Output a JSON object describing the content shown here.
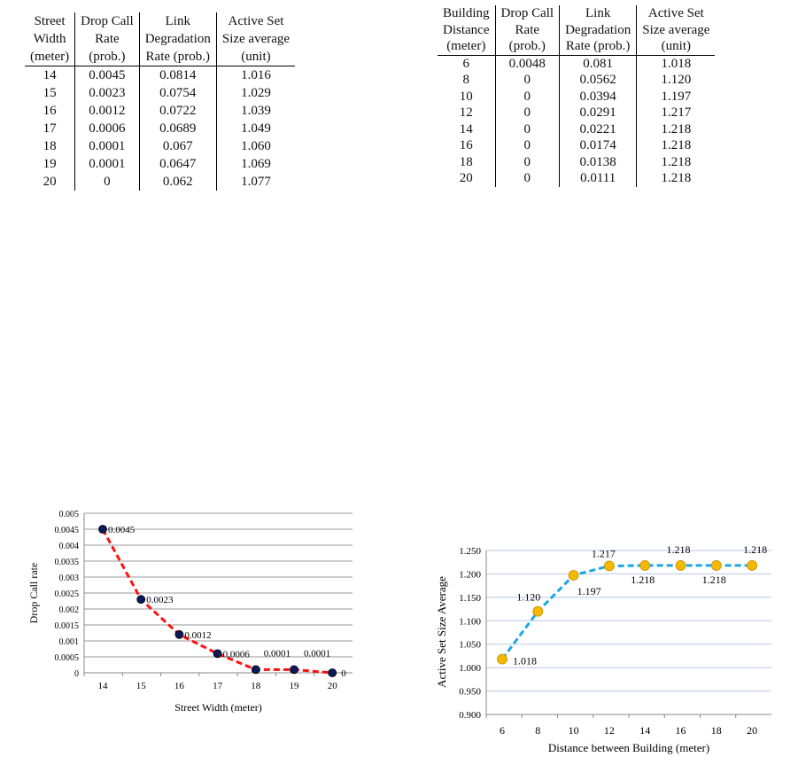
{
  "table1": {
    "headers": [
      [
        "Street",
        "Width",
        "(meter)"
      ],
      [
        "Drop Call",
        "Rate",
        "(prob.)"
      ],
      [
        "Link",
        "Degradation",
        "Rate (prob.)"
      ],
      [
        "Active Set",
        "Size average",
        "(unit)"
      ]
    ],
    "rows": [
      [
        "14",
        "0.0045",
        "0.0814",
        "1.016"
      ],
      [
        "15",
        "0.0023",
        "0.0754",
        "1.029"
      ],
      [
        "16",
        "0.0012",
        "0.0722",
        "1.039"
      ],
      [
        "17",
        "0.0006",
        "0.0689",
        "1.049"
      ],
      [
        "18",
        "0.0001",
        "0.067",
        "1.060"
      ],
      [
        "19",
        "0.0001",
        "0.0647",
        "1.069"
      ],
      [
        "20",
        "0",
        "0.062",
        "1.077"
      ]
    ]
  },
  "table2": {
    "headers": [
      [
        "Building",
        "Distance",
        "(meter)"
      ],
      [
        "Drop Call",
        "Rate",
        "(prob.)"
      ],
      [
        "Link",
        "Degradation",
        "Rate (prob.)"
      ],
      [
        "Active Set",
        "Size average",
        "(unit)"
      ]
    ],
    "rows": [
      [
        "6",
        "0.0048",
        "0.081",
        "1.018"
      ],
      [
        "8",
        "0",
        "0.0562",
        "1.120"
      ],
      [
        "10",
        "0",
        "0.0394",
        "1.197"
      ],
      [
        "12",
        "0",
        "0.0291",
        "1.217"
      ],
      [
        "14",
        "0",
        "0.0221",
        "1.218"
      ],
      [
        "16",
        "0",
        "0.0174",
        "1.218"
      ],
      [
        "18",
        "0",
        "0.0138",
        "1.218"
      ],
      [
        "20",
        "0",
        "0.0111",
        "1.218"
      ]
    ]
  },
  "chart_data": [
    {
      "type": "line",
      "categories": [
        "14",
        "15",
        "16",
        "17",
        "18",
        "19",
        "20"
      ],
      "values": [
        0.0045,
        0.0023,
        0.0012,
        0.0006,
        0.0001,
        0.0001,
        0
      ],
      "data_labels": [
        "0.0045",
        "0.0023",
        "0.0012",
        "0.0006",
        "0.0001",
        "0.0001",
        "0"
      ],
      "xlabel": "Street Width (meter)",
      "ylabel": "Drop Call rate",
      "ylim": [
        0,
        0.005
      ],
      "yticks": [
        "0",
        "0.0005",
        "0.001",
        "0.0015",
        "0.002",
        "0.0025",
        "0.003",
        "0.0035",
        "0.004",
        "0.0045",
        "0.005"
      ],
      "grid": true,
      "line_color": "#ff1010",
      "marker_color": "#0a1a5a",
      "line_style": "dashed"
    },
    {
      "type": "line",
      "categories": [
        "6",
        "8",
        "10",
        "12",
        "14",
        "16",
        "18",
        "20"
      ],
      "values": [
        1.018,
        1.12,
        1.197,
        1.217,
        1.218,
        1.218,
        1.218,
        1.218
      ],
      "data_labels": [
        "1.018",
        "1.120",
        "1.197",
        "1.217",
        "1.218",
        "1.218",
        "1.218",
        "1.218"
      ],
      "xlabel": "Distance between Building  (meter)",
      "ylabel": "Active Set Size Average",
      "ylim": [
        0.9,
        1.25
      ],
      "yticks": [
        "0.900",
        "0.950",
        "1.000",
        "1.050",
        "1.100",
        "1.150",
        "1.200",
        "1.250"
      ],
      "grid": true,
      "line_color": "#1aa6e0",
      "marker_color": "#f5b800",
      "line_style": "dashed"
    }
  ]
}
